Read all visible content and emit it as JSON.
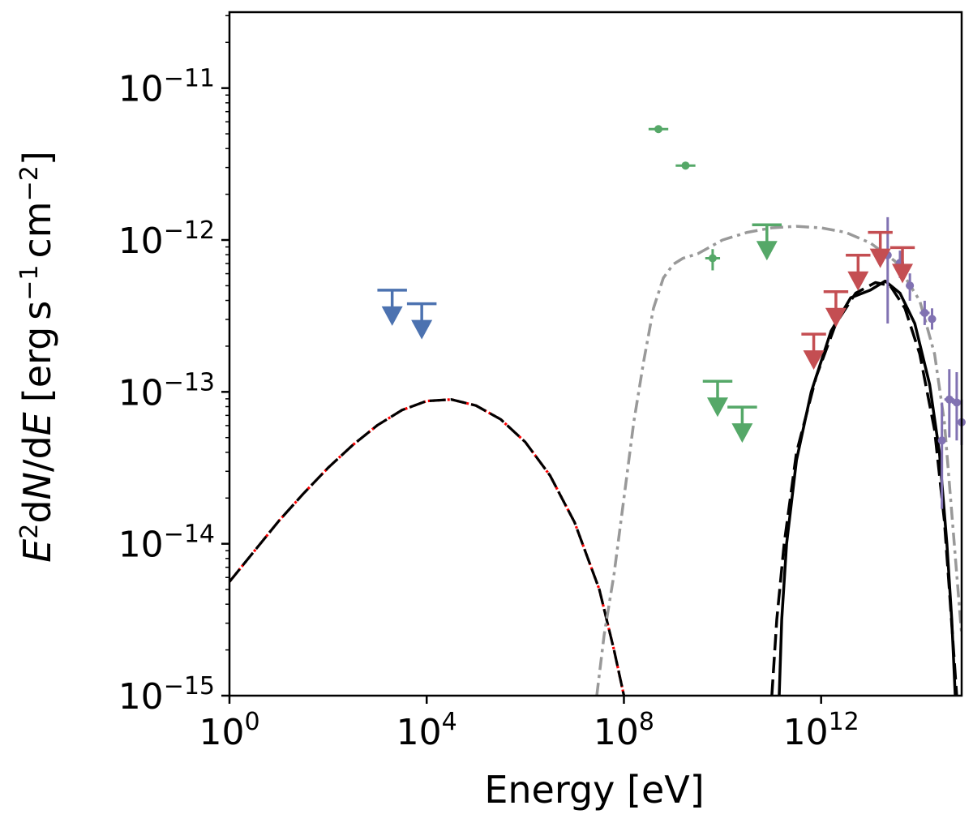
{
  "chart_data": {
    "type": "scatter",
    "title": "",
    "xlabel": "Energy [eV]",
    "ylabel": "E^2 dN/dE [erg s^-1 cm^-2]",
    "ylabel_parts": {
      "main": "E",
      "sup1": "2",
      "d1": "d",
      "n": "N",
      "slash": "/d",
      "e2": "E",
      "units_open": "[erg",
      "s": "s",
      "sup_s": "−1",
      "cm": "cm",
      "sup_cm": "−2",
      "units_close": "]"
    },
    "x_scale": "log",
    "y_scale": "log",
    "xlim_log10": [
      0,
      14.85
    ],
    "ylim_log10": [
      -15,
      -10.5
    ],
    "x_ticks": [
      {
        "base": "10",
        "exp": "0",
        "log10": 0
      },
      {
        "base": "10",
        "exp": "4",
        "log10": 4
      },
      {
        "base": "10",
        "exp": "8",
        "log10": 8
      },
      {
        "base": "10",
        "exp": "12",
        "log10": 12
      }
    ],
    "y_ticks": [
      {
        "base": "10",
        "exp": "−15",
        "log10": -15
      },
      {
        "base": "10",
        "exp": "−14",
        "log10": -14
      },
      {
        "base": "10",
        "exp": "−13",
        "log10": -13
      },
      {
        "base": "10",
        "exp": "−12",
        "log10": -12
      },
      {
        "base": "10",
        "exp": "−11",
        "log10": -11
      }
    ],
    "colors": {
      "xray": "#4c72b0",
      "fermi": "#55a868",
      "hess": "#c44e52",
      "lhaaso": "#8172b2",
      "model_gray": "#999999",
      "model_black": "#000000",
      "model_red": "#ff0000"
    },
    "upper_limits": [
      {
        "name": "xray-ul",
        "color": "xray",
        "points": [
          {
            "x": 3.3,
            "y": -12.33,
            "xerr": 0.3
          },
          {
            "x": 3.9,
            "y": -12.42,
            "xerr": 0.3
          }
        ]
      },
      {
        "name": "fermi-ul",
        "color": "fermi",
        "points": [
          {
            "x": 9.9,
            "y": -12.93,
            "xerr": 0.3
          },
          {
            "x": 10.4,
            "y": -13.1,
            "xerr": 0.3
          },
          {
            "x": 10.9,
            "y": -11.9,
            "xerr": 0.3
          }
        ]
      },
      {
        "name": "hess-ul",
        "color": "hess",
        "points": [
          {
            "x": 11.85,
            "y": -12.62,
            "xerr": 0.25
          },
          {
            "x": 12.3,
            "y": -12.34,
            "xerr": 0.25
          },
          {
            "x": 12.75,
            "y": -12.1,
            "xerr": 0.25
          },
          {
            "x": 13.2,
            "y": -11.95,
            "xerr": 0.25
          },
          {
            "x": 13.65,
            "y": -12.05,
            "xerr": 0.25
          }
        ]
      }
    ],
    "data_points": [
      {
        "name": "fermi-point",
        "color": "fermi",
        "points": [
          {
            "x": 8.7,
            "y": -11.27,
            "xerr": 0.2,
            "ylo": 0.015,
            "yhi": 0.015
          },
          {
            "x": 9.25,
            "y": -11.51,
            "xerr": 0.2,
            "ylo": 0.02,
            "yhi": 0.02
          },
          {
            "x": 9.8,
            "y": -12.12,
            "xerr": 0.15,
            "ylo": 0.08,
            "yhi": 0.06
          }
        ]
      },
      {
        "name": "lhaaso-point",
        "color": "lhaaso",
        "points": [
          {
            "x": 13.35,
            "y": -12.1,
            "xerr": 0,
            "ylo": 0.45,
            "yhi": 0.25
          },
          {
            "x": 13.6,
            "y": -12.15,
            "xerr": 0.08,
            "ylo": 0.1,
            "yhi": 0.08
          },
          {
            "x": 13.8,
            "y": -12.3,
            "xerr": 0.08,
            "ylo": 0.1,
            "yhi": 0.08
          },
          {
            "x": 14.1,
            "y": -12.48,
            "xerr": 0.1,
            "ylo": 0.08,
            "yhi": 0.08
          },
          {
            "x": 14.25,
            "y": -12.52,
            "xerr": 0.08,
            "ylo": 0.07,
            "yhi": 0.07
          },
          {
            "x": 14.45,
            "y": -13.32,
            "xerr": 0,
            "ylo": 0.45,
            "yhi": 0.25
          },
          {
            "x": 14.6,
            "y": -13.05,
            "xerr": 0.1,
            "ylo": 0.25,
            "yhi": 0.2
          },
          {
            "x": 14.75,
            "y": -13.07,
            "xerr": 0.1,
            "ylo": 0.25,
            "yhi": 0.2
          },
          {
            "x": 14.85,
            "y": -13.2,
            "xerr": 0,
            "ylo": 0.15,
            "yhi": 0.15
          }
        ]
      }
    ],
    "curves": [
      {
        "name": "synchrotron-red",
        "color": "model_red",
        "dash": "3,3",
        "width": 3.2,
        "points": [
          [
            0,
            -14.25
          ],
          [
            0.5,
            -14.05
          ],
          [
            1,
            -13.85
          ],
          [
            1.5,
            -13.67
          ],
          [
            2,
            -13.5
          ],
          [
            2.5,
            -13.35
          ],
          [
            3,
            -13.22
          ],
          [
            3.5,
            -13.12
          ],
          [
            4,
            -13.06
          ],
          [
            4.5,
            -13.05
          ],
          [
            5,
            -13.09
          ],
          [
            5.5,
            -13.18
          ],
          [
            6,
            -13.33
          ],
          [
            6.5,
            -13.55
          ],
          [
            7,
            -13.86
          ],
          [
            7.5,
            -14.3
          ],
          [
            7.8,
            -14.7
          ],
          [
            8,
            -15
          ]
        ]
      },
      {
        "name": "synchrotron-black-dashed",
        "color": "model_black",
        "dash": "20,6",
        "width": 3.2,
        "points": [
          [
            0,
            -14.25
          ],
          [
            0.5,
            -14.05
          ],
          [
            1,
            -13.85
          ],
          [
            1.5,
            -13.67
          ],
          [
            2,
            -13.5
          ],
          [
            2.5,
            -13.35
          ],
          [
            3,
            -13.22
          ],
          [
            3.5,
            -13.12
          ],
          [
            4,
            -13.06
          ],
          [
            4.5,
            -13.05
          ],
          [
            5,
            -13.09
          ],
          [
            5.5,
            -13.18
          ],
          [
            6,
            -13.33
          ],
          [
            6.5,
            -13.55
          ],
          [
            7,
            -13.86
          ],
          [
            7.5,
            -14.3
          ],
          [
            7.8,
            -14.7
          ],
          [
            8,
            -15
          ]
        ]
      },
      {
        "name": "inverse-compton-gray",
        "color": "model_gray",
        "dash": "16,6,4,6",
        "width": 3.5,
        "points": [
          [
            7.45,
            -15
          ],
          [
            7.6,
            -14.6
          ],
          [
            7.8,
            -14.2
          ],
          [
            8,
            -13.7
          ],
          [
            8.2,
            -13.2
          ],
          [
            8.4,
            -12.8
          ],
          [
            8.6,
            -12.45
          ],
          [
            8.8,
            -12.25
          ],
          [
            9,
            -12.16
          ],
          [
            9.2,
            -12.12
          ],
          [
            9.5,
            -12.09
          ],
          [
            10,
            -12.0
          ],
          [
            10.5,
            -11.95
          ],
          [
            11,
            -11.92
          ],
          [
            11.5,
            -11.91
          ],
          [
            12,
            -11.92
          ],
          [
            12.5,
            -11.95
          ],
          [
            13,
            -12.02
          ],
          [
            13.5,
            -12.14
          ],
          [
            14,
            -12.4
          ],
          [
            14.3,
            -12.75
          ],
          [
            14.5,
            -13.2
          ],
          [
            14.7,
            -14.0
          ],
          [
            14.85,
            -14.6
          ]
        ]
      },
      {
        "name": "pion-decay-solid",
        "color": "model_black",
        "dash": "",
        "width": 3.5,
        "points": [
          [
            11.15,
            -15
          ],
          [
            11.2,
            -14.5
          ],
          [
            11.3,
            -14.0
          ],
          [
            11.5,
            -13.45
          ],
          [
            11.8,
            -13.0
          ],
          [
            12.2,
            -12.6
          ],
          [
            12.6,
            -12.38
          ],
          [
            13.0,
            -12.33
          ],
          [
            13.3,
            -12.27
          ],
          [
            13.6,
            -12.35
          ],
          [
            13.9,
            -12.55
          ],
          [
            14.2,
            -12.95
          ],
          [
            14.4,
            -13.4
          ],
          [
            14.55,
            -14.0
          ],
          [
            14.65,
            -14.5
          ],
          [
            14.72,
            -15
          ]
        ]
      },
      {
        "name": "pion-decay-dashed",
        "color": "model_black",
        "dash": "20,8",
        "width": 3.5,
        "points": [
          [
            11.0,
            -15
          ],
          [
            11.1,
            -14.5
          ],
          [
            11.25,
            -14.0
          ],
          [
            11.5,
            -13.4
          ],
          [
            11.9,
            -12.9
          ],
          [
            12.3,
            -12.55
          ],
          [
            12.7,
            -12.35
          ],
          [
            13.1,
            -12.28
          ],
          [
            13.4,
            -12.3
          ],
          [
            13.7,
            -12.45
          ],
          [
            14.0,
            -12.75
          ],
          [
            14.3,
            -13.25
          ],
          [
            14.5,
            -13.85
          ],
          [
            14.6,
            -14.3
          ],
          [
            14.75,
            -15
          ]
        ]
      }
    ]
  }
}
